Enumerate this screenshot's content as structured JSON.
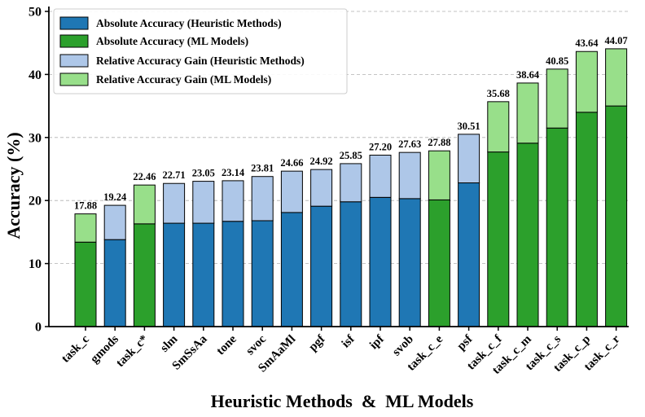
{
  "chart_data": {
    "type": "bar",
    "stacked": true,
    "title": "",
    "xlabel": "Heuristic Methods  &  ML Models",
    "ylabel": "Accuracy (%)",
    "ylim": [
      0,
      50
    ],
    "yticks": [
      0,
      10,
      20,
      30,
      40,
      50
    ],
    "grid": "y-dashed",
    "legend_position": "top-left",
    "categories": [
      "task_c",
      "gmods",
      "task_c*",
      "slm",
      "SmSsAa",
      "tone",
      "svoc",
      "SmAaMl",
      "pgf",
      "isf",
      "ipf",
      "svob",
      "task_c_e",
      "psf",
      "task_c_f",
      "task_c_m",
      "task_c_s",
      "task_c_p",
      "task_c_r"
    ],
    "group": [
      "ml",
      "heuristic",
      "ml",
      "heuristic",
      "heuristic",
      "heuristic",
      "heuristic",
      "heuristic",
      "heuristic",
      "heuristic",
      "heuristic",
      "heuristic",
      "ml",
      "heuristic",
      "ml",
      "ml",
      "ml",
      "ml",
      "ml"
    ],
    "absolute": [
      13.4,
      13.8,
      16.3,
      16.4,
      16.4,
      16.7,
      16.8,
      18.1,
      19.1,
      19.8,
      20.5,
      20.3,
      20.1,
      22.8,
      27.7,
      29.1,
      31.5,
      34.0,
      35.0
    ],
    "totals": [
      17.88,
      19.24,
      22.46,
      22.71,
      23.05,
      23.14,
      23.81,
      24.66,
      24.92,
      25.85,
      27.2,
      27.63,
      27.88,
      30.51,
      35.68,
      38.64,
      40.85,
      43.64,
      44.07
    ],
    "total_labels": [
      "17.88",
      "19.24",
      "22.46",
      "22.71",
      "23.05",
      "23.14",
      "23.81",
      "24.66",
      "24.92",
      "25.85",
      "27.20",
      "27.63",
      "27.88",
      "30.51",
      "35.68",
      "38.64",
      "40.85",
      "43.64",
      "44.07"
    ],
    "series": [
      {
        "name": "Absolute Accuracy (Heuristic Methods)",
        "color": "#1f77b4"
      },
      {
        "name": "Absolute Accuracy (ML Models)",
        "color": "#2ca02c"
      },
      {
        "name": "Relative Accuracy Gain (Heuristic Methods)",
        "color": "#aec7e8"
      },
      {
        "name": "Relative Accuracy Gain (ML Models)",
        "color": "#98df8a"
      }
    ]
  }
}
